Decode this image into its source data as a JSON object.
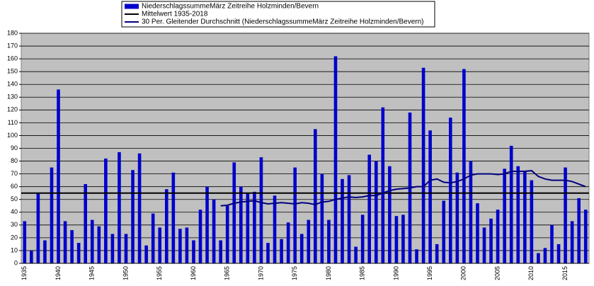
{
  "chart_data": {
    "type": "bar",
    "categories": [
      "1935",
      null,
      null,
      null,
      null,
      "1940",
      null,
      null,
      null,
      null,
      "1945",
      null,
      null,
      null,
      null,
      "1950",
      null,
      null,
      null,
      null,
      "1955",
      null,
      null,
      null,
      null,
      "1960",
      null,
      null,
      null,
      null,
      "1965",
      null,
      null,
      null,
      null,
      "1970",
      null,
      null,
      null,
      null,
      "1975",
      null,
      null,
      null,
      null,
      "1980",
      null,
      null,
      null,
      null,
      "1985",
      null,
      null,
      null,
      null,
      "1990",
      null,
      null,
      null,
      null,
      "1995",
      null,
      null,
      null,
      null,
      "2000",
      null,
      null,
      null,
      null,
      "2005",
      null,
      null,
      null,
      null,
      "2010",
      null,
      null,
      null,
      null,
      "2015",
      null,
      null,
      null
    ],
    "series": [
      {
        "name": "NiederschlagssummeMärz Zeitreihe Holzminden/Bevern",
        "color": "#0000cc",
        "type": "bar",
        "values": [
          33,
          10,
          55,
          18,
          75,
          136,
          33,
          26,
          16,
          62,
          34,
          29,
          82,
          23,
          87,
          23,
          73,
          86,
          14,
          39,
          28,
          58,
          71,
          27,
          28,
          18,
          42,
          60,
          50,
          18,
          45,
          79,
          60,
          55,
          56,
          83,
          16,
          53,
          19,
          32,
          75,
          23,
          34,
          105,
          70,
          34,
          162,
          66,
          69,
          13,
          38,
          85,
          80,
          122,
          76,
          37,
          38,
          118,
          11,
          153,
          104,
          15,
          49,
          114,
          71,
          152,
          80,
          47,
          28,
          35,
          42,
          74,
          92,
          76,
          72,
          65,
          8,
          12,
          30,
          15,
          75,
          33,
          51,
          42
        ]
      },
      {
        "name": "30 Per. Gleitender Durchschnitt (NiederschlagssummeMärz Zeitreihe Holzminden/Bevern)",
        "color": "#000080",
        "type": "line",
        "values": [
          null,
          null,
          null,
          null,
          null,
          null,
          null,
          null,
          null,
          null,
          null,
          null,
          null,
          null,
          null,
          null,
          null,
          null,
          null,
          null,
          null,
          null,
          null,
          null,
          null,
          null,
          null,
          null,
          null,
          45,
          45.5,
          47,
          48,
          48.5,
          49,
          47.5,
          46.5,
          47,
          47.5,
          47,
          46.5,
          47.5,
          47,
          46,
          48,
          48.5,
          50,
          51,
          52,
          51.5,
          52,
          53,
          53,
          55,
          57,
          58,
          58.5,
          59,
          60,
          60,
          65,
          66,
          63.5,
          63,
          64,
          66,
          69,
          70,
          70,
          70,
          69.5,
          70,
          72,
          72,
          72,
          72.5,
          68,
          66,
          65,
          65,
          65,
          64,
          62,
          60
        ]
      }
    ],
    "mean_line": {
      "name": "Mittelwert 1935-2018",
      "value": 55,
      "color": "#000000"
    },
    "ylim": [
      0,
      180
    ],
    "yticks": [
      0,
      10,
      20,
      30,
      40,
      50,
      60,
      70,
      80,
      90,
      100,
      110,
      120,
      130,
      140,
      150,
      160,
      170,
      180
    ],
    "grid": true
  }
}
